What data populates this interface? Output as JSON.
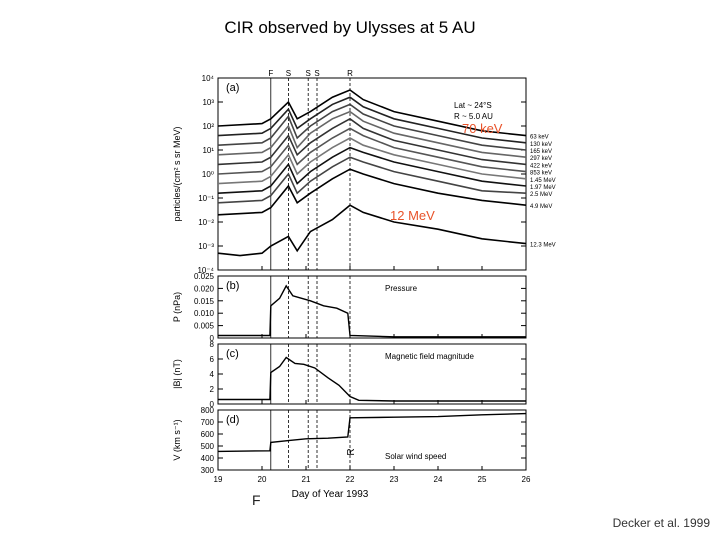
{
  "title": "CIR observed by Ulysses at 5 AU",
  "credit": "Decker et al. 1999",
  "overlay_labels": {
    "kev70": "70 keV",
    "mev12": "12 MeV",
    "f_bottom": "F"
  },
  "chart_data": {
    "type": "line",
    "xlabel": "Day of Year 1993",
    "xlim": [
      19,
      26
    ],
    "xticks": [
      "19",
      "20",
      "21",
      "22",
      "23",
      "24",
      "25",
      "26"
    ],
    "boundaries": [
      {
        "label": "F",
        "day": 20.2,
        "style": "solid"
      },
      {
        "label": "S",
        "day": 20.6,
        "style": "dashed"
      },
      {
        "label": "S",
        "day": 21.05,
        "style": "dashed"
      },
      {
        "label": "S",
        "day": 21.25,
        "style": "dashed"
      },
      {
        "label": "R",
        "day": 22.0,
        "style": "dashed"
      }
    ],
    "panels": [
      {
        "id": "a",
        "tag": "(a)",
        "ylabel": "particles/(cm² s sr MeV)",
        "scale": "log",
        "ylim": [
          -4,
          4
        ],
        "yticks": [
          "10⁴",
          "10³",
          "10²",
          "10¹",
          "10⁰",
          "10⁻¹",
          "10⁻²",
          "10⁻³",
          "10⁻⁴"
        ],
        "annotation": "Lat ~ 24°S\nR ~ 5.0 AU",
        "series": [
          {
            "name": "63 keV",
            "values": [
              [
                19,
                2.0
              ],
              [
                20,
                2.1
              ],
              [
                20.2,
                2.3
              ],
              [
                20.6,
                3.0
              ],
              [
                20.8,
                2.3
              ],
              [
                21.1,
                2.6
              ],
              [
                21.6,
                3.2
              ],
              [
                22.0,
                3.5
              ],
              [
                22.3,
                3.1
              ],
              [
                23,
                2.6
              ],
              [
                24,
                2.2
              ],
              [
                25,
                1.8
              ],
              [
                26,
                1.6
              ]
            ]
          },
          {
            "name": "130 keV",
            "values": [
              [
                19,
                1.6
              ],
              [
                20,
                1.7
              ],
              [
                20.2,
                1.9
              ],
              [
                20.6,
                2.7
              ],
              [
                20.8,
                1.9
              ],
              [
                21.1,
                2.3
              ],
              [
                21.6,
                2.9
              ],
              [
                22.0,
                3.2
              ],
              [
                22.3,
                2.8
              ],
              [
                23,
                2.3
              ],
              [
                24,
                1.9
              ],
              [
                25,
                1.5
              ],
              [
                26,
                1.3
              ]
            ]
          },
          {
            "name": "165 keV",
            "values": [
              [
                19,
                1.2
              ],
              [
                20,
                1.3
              ],
              [
                20.2,
                1.5
              ],
              [
                20.6,
                2.4
              ],
              [
                20.8,
                1.5
              ],
              [
                21.1,
                2.0
              ],
              [
                21.6,
                2.6
              ],
              [
                22.0,
                2.9
              ],
              [
                22.3,
                2.5
              ],
              [
                23,
                2.0
              ],
              [
                24,
                1.6
              ],
              [
                25,
                1.2
              ],
              [
                26,
                1.0
              ]
            ]
          },
          {
            "name": "297 keV",
            "values": [
              [
                19,
                0.8
              ],
              [
                20,
                0.9
              ],
              [
                20.2,
                1.1
              ],
              [
                20.6,
                2.0
              ],
              [
                20.8,
                1.1
              ],
              [
                21.1,
                1.7
              ],
              [
                21.6,
                2.3
              ],
              [
                22.0,
                2.6
              ],
              [
                22.3,
                2.2
              ],
              [
                23,
                1.7
              ],
              [
                24,
                1.3
              ],
              [
                25,
                0.9
              ],
              [
                26,
                0.7
              ]
            ]
          },
          {
            "name": "422 keV",
            "values": [
              [
                19,
                0.4
              ],
              [
                20,
                0.5
              ],
              [
                20.2,
                0.7
              ],
              [
                20.6,
                1.6
              ],
              [
                20.8,
                0.8
              ],
              [
                21.1,
                1.3
              ],
              [
                21.6,
                1.9
              ],
              [
                22.0,
                2.3
              ],
              [
                22.3,
                1.9
              ],
              [
                23,
                1.4
              ],
              [
                24,
                1.0
              ],
              [
                25,
                0.6
              ],
              [
                26,
                0.4
              ]
            ]
          },
          {
            "name": "853 keV",
            "values": [
              [
                19,
                0.0
              ],
              [
                20,
                0.1
              ],
              [
                20.2,
                0.3
              ],
              [
                20.6,
                1.2
              ],
              [
                20.8,
                0.4
              ],
              [
                21.1,
                0.9
              ],
              [
                21.6,
                1.5
              ],
              [
                22.0,
                1.9
              ],
              [
                22.3,
                1.6
              ],
              [
                23,
                1.1
              ],
              [
                24,
                0.7
              ],
              [
                25,
                0.3
              ],
              [
                26,
                0.1
              ]
            ]
          },
          {
            "name": "1.45 MeV",
            "values": [
              [
                19,
                -0.4
              ],
              [
                20,
                -0.3
              ],
              [
                20.2,
                -0.1
              ],
              [
                20.6,
                0.8
              ],
              [
                20.8,
                0.0
              ],
              [
                21.1,
                0.5
              ],
              [
                21.6,
                1.1
              ],
              [
                22.0,
                1.5
              ],
              [
                22.3,
                1.2
              ],
              [
                23,
                0.8
              ],
              [
                24,
                0.4
              ],
              [
                25,
                0.0
              ],
              [
                26,
                -0.2
              ]
            ]
          },
          {
            "name": "1.97 MeV",
            "values": [
              [
                19,
                -0.8
              ],
              [
                20,
                -0.7
              ],
              [
                20.2,
                -0.5
              ],
              [
                20.6,
                0.4
              ],
              [
                20.8,
                -0.4
              ],
              [
                21.1,
                0.1
              ],
              [
                21.6,
                0.7
              ],
              [
                22.0,
                1.1
              ],
              [
                22.3,
                0.9
              ],
              [
                23,
                0.5
              ],
              [
                24,
                0.1
              ],
              [
                25,
                -0.3
              ],
              [
                26,
                -0.5
              ]
            ]
          },
          {
            "name": "2.5 MeV",
            "values": [
              [
                19,
                -1.2
              ],
              [
                20,
                -1.1
              ],
              [
                20.2,
                -0.9
              ],
              [
                20.6,
                0.0
              ],
              [
                20.8,
                -0.8
              ],
              [
                21.1,
                -0.3
              ],
              [
                21.6,
                0.3
              ],
              [
                22.0,
                0.7
              ],
              [
                22.3,
                0.5
              ],
              [
                23,
                0.1
              ],
              [
                24,
                -0.3
              ],
              [
                25,
                -0.7
              ],
              [
                26,
                -0.8
              ]
            ]
          },
          {
            "name": "4.9 MeV",
            "values": [
              [
                19,
                -1.7
              ],
              [
                20,
                -1.6
              ],
              [
                20.2,
                -1.4
              ],
              [
                20.6,
                -0.5
              ],
              [
                20.8,
                -1.2
              ],
              [
                21.1,
                -0.8
              ],
              [
                21.6,
                -0.2
              ],
              [
                22.0,
                0.2
              ],
              [
                22.3,
                0.0
              ],
              [
                23,
                -0.4
              ],
              [
                24,
                -0.8
              ],
              [
                25,
                -1.1
              ],
              [
                26,
                -1.3
              ]
            ]
          },
          {
            "name": "12.3 MeV",
            "values": [
              [
                19,
                -3.3
              ],
              [
                19.5,
                -3.4
              ],
              [
                20,
                -3.3
              ],
              [
                20.2,
                -3.0
              ],
              [
                20.6,
                -2.6
              ],
              [
                20.8,
                -3.2
              ],
              [
                21.1,
                -2.4
              ],
              [
                21.6,
                -1.9
              ],
              [
                22.0,
                -1.3
              ],
              [
                22.3,
                -1.6
              ],
              [
                23,
                -2.0
              ],
              [
                24,
                -2.3
              ],
              [
                25,
                -2.7
              ],
              [
                26,
                -2.9
              ]
            ]
          }
        ]
      },
      {
        "id": "b",
        "tag": "(b)",
        "ylabel": "P (nPa)",
        "ylim": [
          0,
          0.025
        ],
        "yticks": [
          "0",
          "0.005",
          "0.010",
          "0.015",
          "0.020",
          "0.025"
        ],
        "legend": "Pressure",
        "values": [
          [
            19,
            0.001
          ],
          [
            20.18,
            0.001
          ],
          [
            20.2,
            0.013
          ],
          [
            20.4,
            0.016
          ],
          [
            20.55,
            0.021
          ],
          [
            20.7,
            0.017
          ],
          [
            20.9,
            0.016
          ],
          [
            21.1,
            0.015
          ],
          [
            21.4,
            0.013
          ],
          [
            21.7,
            0.012
          ],
          [
            21.95,
            0.01
          ],
          [
            22.0,
            0.001
          ],
          [
            23,
            0.0005
          ],
          [
            24,
            0.0005
          ],
          [
            25,
            0.0005
          ],
          [
            26,
            0.0005
          ]
        ]
      },
      {
        "id": "c",
        "tag": "(c)",
        "ylabel": "|B| (nT)",
        "ylim": [
          0,
          8
        ],
        "yticks": [
          "0",
          "2",
          "4",
          "6",
          "8"
        ],
        "legend": "Magnetic field magnitude",
        "values": [
          [
            19,
            0.6
          ],
          [
            20.18,
            0.6
          ],
          [
            20.2,
            4.2
          ],
          [
            20.4,
            5.0
          ],
          [
            20.55,
            6.2
          ],
          [
            20.75,
            5.4
          ],
          [
            20.95,
            5.3
          ],
          [
            21.2,
            4.8
          ],
          [
            21.5,
            3.5
          ],
          [
            21.75,
            2.5
          ],
          [
            22.0,
            1.0
          ],
          [
            22.2,
            0.5
          ],
          [
            23,
            0.4
          ],
          [
            24,
            0.4
          ],
          [
            25,
            0.4
          ],
          [
            26,
            0.4
          ]
        ]
      },
      {
        "id": "d",
        "tag": "(d)",
        "ylabel": "V (km s⁻¹)",
        "ylim": [
          300,
          800
        ],
        "yticks": [
          "300",
          "400",
          "500",
          "600",
          "700",
          "800"
        ],
        "legend": "Solar wind speed",
        "values": [
          [
            19,
            455
          ],
          [
            20.18,
            460
          ],
          [
            20.2,
            530
          ],
          [
            20.6,
            545
          ],
          [
            21.0,
            560
          ],
          [
            21.5,
            565
          ],
          [
            21.95,
            575
          ],
          [
            22.0,
            735
          ],
          [
            23,
            740
          ],
          [
            24,
            745
          ],
          [
            25,
            760
          ],
          [
            26,
            770
          ]
        ]
      }
    ],
    "series_label_note": "R",
    "r_annotation": "R"
  }
}
